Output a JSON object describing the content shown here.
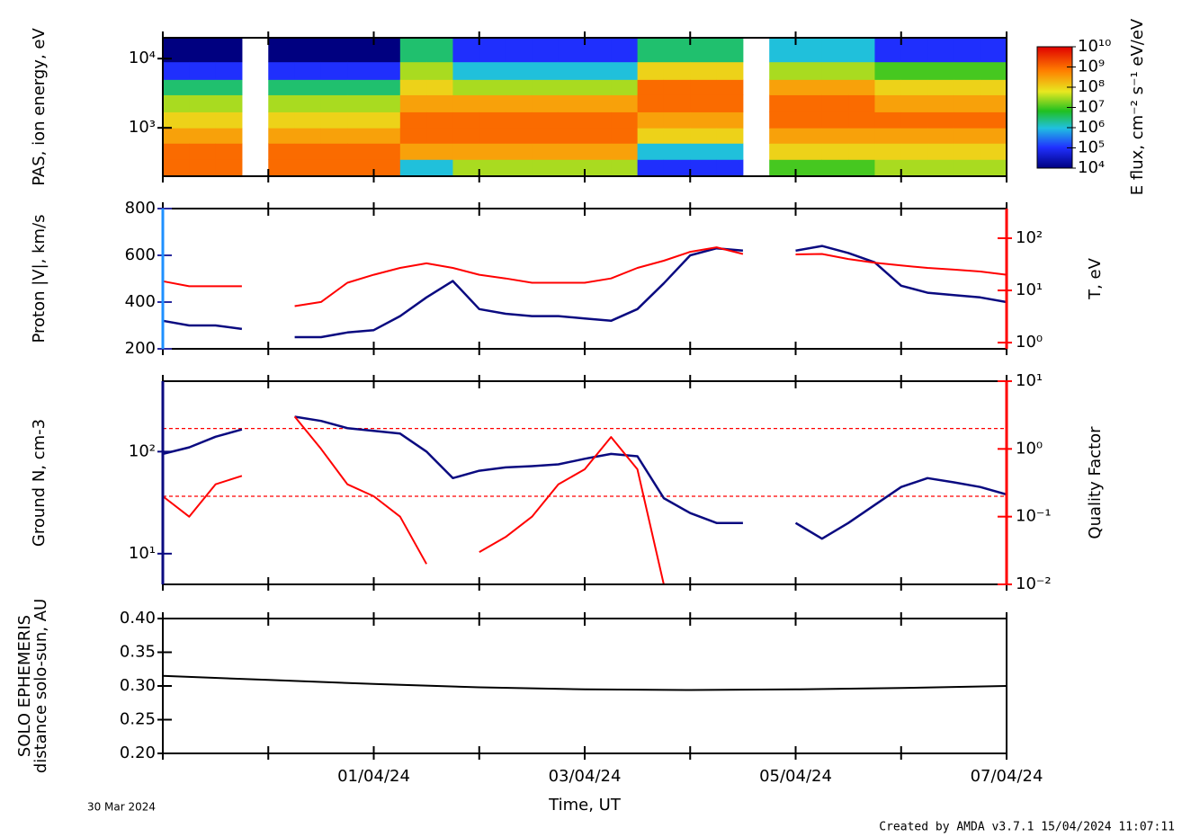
{
  "chart_data": [
    {
      "type": "spectrogram",
      "ylabel": "PAS, ion energy, eV",
      "zlabel": "E flux, cm⁻² s⁻¹ eV/eV",
      "xlim": [
        0,
        8
      ],
      "xticks": [
        0,
        1,
        2,
        3,
        4,
        5,
        6,
        7,
        8
      ],
      "ylim": [
        200,
        20000
      ],
      "ylog": true,
      "yticks": [
        {
          "value": 1000,
          "label": "10³"
        },
        {
          "value": 10000,
          "label": "10⁴"
        }
      ],
      "zlim": [
        10000,
        10000000000
      ],
      "zlog": true,
      "zticks": [
        {
          "value": 10000,
          "label": "10⁴"
        },
        {
          "value": 100000,
          "label": "10⁵"
        },
        {
          "value": 1000000,
          "label": "10⁶"
        },
        {
          "value": 10000000,
          "label": "10⁷"
        },
        {
          "value": 100000000,
          "label": "10⁸"
        },
        {
          "value": 1000000000,
          "label": "10⁹"
        },
        {
          "value": 10000000000,
          "label": "10¹⁰"
        }
      ],
      "x": [
        0,
        0.25,
        0.5,
        0.75,
        1,
        1.25,
        1.5,
        1.75,
        2,
        2.25,
        2.5,
        2.75,
        3,
        3.25,
        3.5,
        3.75,
        4,
        4.25,
        4.5,
        4.75,
        5,
        5.25,
        5.5,
        5.75,
        6,
        6.25,
        6.5,
        6.75,
        7,
        7.25,
        7.5,
        7.75,
        8
      ],
      "energy_bins": [
        200,
        350,
        600,
        1000,
        1700,
        3000,
        5000,
        9000,
        20000
      ],
      "z": [
        [
          1000000000.0,
          1000000000.0,
          300000000.0,
          100000000.0,
          30000000.0,
          3000000.0,
          100000.0,
          10000.0
        ],
        [
          1000000000.0,
          1000000000.0,
          300000000.0,
          100000000.0,
          30000000.0,
          3000000.0,
          100000.0,
          10000.0
        ],
        [
          1000000000.0,
          1000000000.0,
          300000000.0,
          100000000.0,
          30000000.0,
          3000000.0,
          100000.0,
          10000.0
        ],
        [
          null,
          null,
          null,
          null,
          null,
          null,
          null,
          null
        ],
        [
          1000000000.0,
          1000000000.0,
          300000000.0,
          100000000.0,
          30000000.0,
          3000000.0,
          100000.0,
          10000.0
        ],
        [
          1000000000.0,
          1000000000.0,
          300000000.0,
          100000000.0,
          30000000.0,
          3000000.0,
          100000.0,
          10000.0
        ],
        [
          1000000000.0,
          1000000000.0,
          300000000.0,
          100000000.0,
          30000000.0,
          3000000.0,
          100000.0,
          10000.0
        ],
        [
          1000000000.0,
          1000000000.0,
          300000000.0,
          100000000.0,
          30000000.0,
          3000000.0,
          100000.0,
          10000.0
        ],
        [
          1000000000.0,
          1000000000.0,
          300000000.0,
          100000000.0,
          30000000.0,
          3000000.0,
          100000.0,
          10000.0
        ],
        [
          1000000.0,
          300000000.0,
          1000000000.0,
          1000000000.0,
          300000000.0,
          100000000.0,
          30000000.0,
          3000000.0
        ],
        [
          1000000.0,
          300000000.0,
          1000000000.0,
          1000000000.0,
          300000000.0,
          100000000.0,
          30000000.0,
          3000000.0
        ],
        [
          30000000.0,
          300000000.0,
          1000000000.0,
          1000000000.0,
          300000000.0,
          30000000.0,
          1000000.0,
          100000.0
        ],
        [
          30000000.0,
          300000000.0,
          1000000000.0,
          1000000000.0,
          300000000.0,
          30000000.0,
          1000000.0,
          100000.0
        ],
        [
          30000000.0,
          300000000.0,
          1000000000.0,
          1000000000.0,
          300000000.0,
          30000000.0,
          1000000.0,
          100000.0
        ],
        [
          30000000.0,
          300000000.0,
          1000000000.0,
          1000000000.0,
          300000000.0,
          30000000.0,
          1000000.0,
          100000.0
        ],
        [
          30000000.0,
          300000000.0,
          1000000000.0,
          1000000000.0,
          300000000.0,
          30000000.0,
          1000000.0,
          100000.0
        ],
        [
          30000000.0,
          300000000.0,
          1000000000.0,
          1000000000.0,
          300000000.0,
          30000000.0,
          1000000.0,
          100000.0
        ],
        [
          30000000.0,
          300000000.0,
          1000000000.0,
          1000000000.0,
          300000000.0,
          30000000.0,
          1000000.0,
          100000.0
        ],
        [
          100000.0,
          1000000.0,
          100000000.0,
          300000000.0,
          1000000000.0,
          1000000000.0,
          100000000.0,
          3000000.0
        ],
        [
          100000.0,
          1000000.0,
          100000000.0,
          300000000.0,
          1000000000.0,
          1000000000.0,
          100000000.0,
          3000000.0
        ],
        [
          100000.0,
          1000000.0,
          100000000.0,
          300000000.0,
          1000000000.0,
          1000000000.0,
          100000000.0,
          3000000.0
        ],
        [
          100000.0,
          1000000.0,
          100000000.0,
          300000000.0,
          1000000000.0,
          1000000000.0,
          100000000.0,
          3000000.0
        ],
        [
          null,
          null,
          null,
          null,
          null,
          null,
          null,
          null
        ],
        [
          10000000.0,
          100000000.0,
          300000000.0,
          1000000000.0,
          1000000000.0,
          300000000.0,
          30000000.0,
          1000000.0
        ],
        [
          10000000.0,
          100000000.0,
          300000000.0,
          1000000000.0,
          1000000000.0,
          300000000.0,
          30000000.0,
          1000000.0
        ],
        [
          10000000.0,
          100000000.0,
          300000000.0,
          1000000000.0,
          1000000000.0,
          300000000.0,
          30000000.0,
          1000000.0
        ],
        [
          10000000.0,
          100000000.0,
          300000000.0,
          1000000000.0,
          1000000000.0,
          300000000.0,
          30000000.0,
          1000000.0
        ],
        [
          30000000.0,
          100000000.0,
          300000000.0,
          1000000000.0,
          300000000.0,
          100000000.0,
          10000000.0,
          100000.0
        ],
        [
          30000000.0,
          100000000.0,
          300000000.0,
          1000000000.0,
          300000000.0,
          100000000.0,
          10000000.0,
          100000.0
        ],
        [
          30000000.0,
          100000000.0,
          300000000.0,
          1000000000.0,
          300000000.0,
          100000000.0,
          10000000.0,
          100000.0
        ],
        [
          30000000.0,
          100000000.0,
          300000000.0,
          1000000000.0,
          300000000.0,
          100000000.0,
          10000000.0,
          100000.0
        ],
        [
          30000000.0,
          100000000.0,
          300000000.0,
          1000000000.0,
          300000000.0,
          100000000.0,
          10000000.0,
          100000.0
        ]
      ]
    },
    {
      "type": "line",
      "ylabel": "Proton |V|, km/s",
      "y2label": "T, eV",
      "xlim": [
        0,
        8
      ],
      "xticks": [
        0,
        1,
        2,
        3,
        4,
        5,
        6,
        7,
        8
      ],
      "ylim": [
        200,
        800
      ],
      "yticks": [
        200,
        400,
        600,
        800
      ],
      "ycolor": "#2b2b9e",
      "y2lim": [
        0.76,
        370
      ],
      "y2log": true,
      "y2color": "#ff0000",
      "y2ticks": [
        {
          "value": 1,
          "label": "10⁰"
        },
        {
          "value": 10,
          "label": "10¹"
        },
        {
          "value": 100,
          "label": "10²"
        }
      ],
      "x": [
        0,
        0.25,
        0.5,
        0.75,
        1,
        1.25,
        1.5,
        1.75,
        2,
        2.25,
        2.5,
        2.75,
        3,
        3.25,
        3.5,
        3.75,
        4,
        4.25,
        4.5,
        4.75,
        5,
        5.25,
        5.5,
        5.75,
        6,
        6.25,
        6.5,
        6.75,
        7,
        7.25,
        7.5,
        7.75,
        8
      ],
      "series": [
        {
          "color": "#0a0a80",
          "values": [
            320,
            300,
            300,
            285,
            null,
            250,
            250,
            270,
            280,
            340,
            420,
            490,
            370,
            350,
            340,
            340,
            330,
            320,
            370,
            480,
            600,
            630,
            620,
            null,
            620,
            640,
            610,
            570,
            470,
            440,
            430,
            420,
            400
          ]
        },
        {
          "color": "#ff0000",
          "axis": "y2",
          "values": [
            15,
            12,
            12,
            12,
            null,
            5,
            6,
            14,
            20,
            27,
            33,
            27,
            20,
            17,
            14,
            14,
            14,
            17,
            27,
            37,
            55,
            67,
            50,
            null,
            49,
            50,
            40,
            34,
            30,
            27,
            25,
            23,
            20
          ]
        }
      ]
    },
    {
      "type": "line",
      "ylabel": "Ground N, cm-3",
      "y2label": "Quality Factor",
      "xlim": [
        0,
        8
      ],
      "xticks": [
        0,
        1,
        2,
        3,
        4,
        5,
        6,
        7,
        8
      ],
      "ylim": [
        5,
        490
      ],
      "ylog": true,
      "ycolor": "#0a0a80",
      "yticks": [
        {
          "value": 10,
          "label": "10¹"
        },
        {
          "value": 100,
          "label": "10²"
        }
      ],
      "y2lim": [
        0.01,
        10
      ],
      "y2log": true,
      "y2color": "#ff0000",
      "y2ticks": [
        {
          "value": 0.01,
          "label": "10⁻²"
        },
        {
          "value": 0.1,
          "label": "10⁻¹"
        },
        {
          "value": 1,
          "label": "10⁰"
        },
        {
          "value": 10,
          "label": "10¹"
        }
      ],
      "y2_reference_lines": [
        2,
        0.2
      ],
      "x": [
        0,
        0.25,
        0.5,
        0.75,
        1,
        1.25,
        1.5,
        1.75,
        2,
        2.25,
        2.5,
        2.75,
        3,
        3.25,
        3.5,
        3.75,
        4,
        4.25,
        4.5,
        4.75,
        5,
        5.25,
        5.5,
        5.75,
        6,
        6.25,
        6.5,
        6.75,
        7,
        7.25,
        7.5,
        7.75,
        8
      ],
      "series": [
        {
          "color": "#0a0a80",
          "values": [
            95,
            110,
            140,
            165,
            null,
            220,
            200,
            170,
            160,
            150,
            100,
            55,
            65,
            70,
            72,
            75,
            85,
            95,
            90,
            35,
            25,
            20,
            20,
            null,
            20,
            14,
            20,
            30,
            45,
            55,
            50,
            45,
            38
          ]
        },
        {
          "color": "#ff0000",
          "axis": "y2",
          "values": [
            0.2,
            0.1,
            0.3,
            0.4,
            null,
            3,
            1,
            0.3,
            0.2,
            0.1,
            0.02,
            null,
            0.03,
            0.05,
            0.1,
            0.3,
            0.5,
            1.5,
            0.5,
            0.01,
            null,
            null,
            null,
            null,
            null,
            null,
            null,
            null,
            null,
            null,
            null,
            null,
            null
          ]
        }
      ]
    },
    {
      "type": "line",
      "ylabel": [
        "SOLO EPHEMERIS",
        "distance solo-sun, AU"
      ],
      "xlabel": "Time, UT",
      "xlim": [
        0,
        8
      ],
      "xticks": [
        {
          "value": 2,
          "label": "01/04/24"
        },
        {
          "value": 4,
          "label": "03/04/24"
        },
        {
          "value": 6,
          "label": "05/04/24"
        },
        {
          "value": 8,
          "label": "07/04/24"
        }
      ],
      "xminorticks": [
        0,
        1,
        3,
        5,
        7
      ],
      "ylim": [
        0.2,
        0.4
      ],
      "yticks": [
        {
          "value": 0.2,
          "label": "0.20"
        },
        0.25,
        {
          "value": 0.3,
          "label": "0.30"
        },
        0.35,
        {
          "value": 0.4,
          "label": "0.40"
        }
      ],
      "x": [
        0,
        1,
        2,
        3,
        4,
        5,
        6,
        7,
        8
      ],
      "series": [
        {
          "color": "#000000",
          "values": [
            0.315,
            0.309,
            0.303,
            0.298,
            0.295,
            0.294,
            0.295,
            0.297,
            0.3
          ]
        }
      ]
    }
  ],
  "footer": {
    "start_date": "30 Mar 2024",
    "credit": "Created by AMDA v3.7.1 15/04/2024 11:07:11"
  }
}
